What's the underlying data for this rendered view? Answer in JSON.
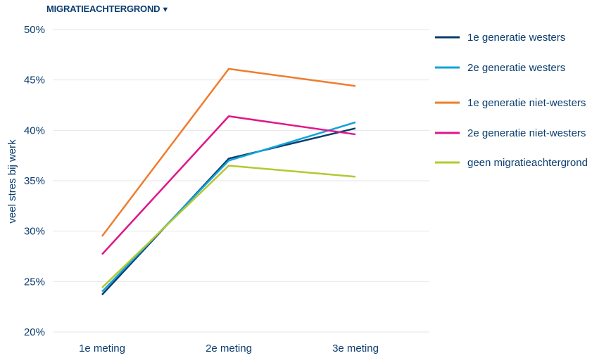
{
  "filter": {
    "label": "MIGRATIEACHTERGROND",
    "caret": "▼"
  },
  "chart_data": {
    "type": "line",
    "title": "",
    "xlabel": "",
    "ylabel": "veel stres bij werk",
    "x": [
      "1e meting",
      "2e meting",
      "3e meting"
    ],
    "ylim": [
      20,
      50
    ],
    "yticks": [
      20,
      25,
      30,
      35,
      40,
      45,
      50
    ],
    "ytick_labels": [
      "20%",
      "25%",
      "30%",
      "35%",
      "40%",
      "45%",
      "50%"
    ],
    "grid": true,
    "legend_position": "right",
    "series": [
      {
        "name": "1e generatie westers",
        "color": "#0b3d6e",
        "values": [
          23.7,
          37.2,
          40.2
        ]
      },
      {
        "name": "2e generatie westers",
        "color": "#13a3dd",
        "values": [
          24.0,
          37.0,
          40.8
        ]
      },
      {
        "name": "1e generatie niet-westers",
        "color": "#ef7d2d",
        "values": [
          29.5,
          46.1,
          44.4
        ]
      },
      {
        "name": "2e generatie niet-westers",
        "color": "#e0168a",
        "values": [
          27.7,
          41.4,
          39.6
        ]
      },
      {
        "name": "geen migratieachtergrond",
        "color": "#b5c832",
        "values": [
          24.4,
          36.5,
          35.4
        ]
      }
    ]
  }
}
